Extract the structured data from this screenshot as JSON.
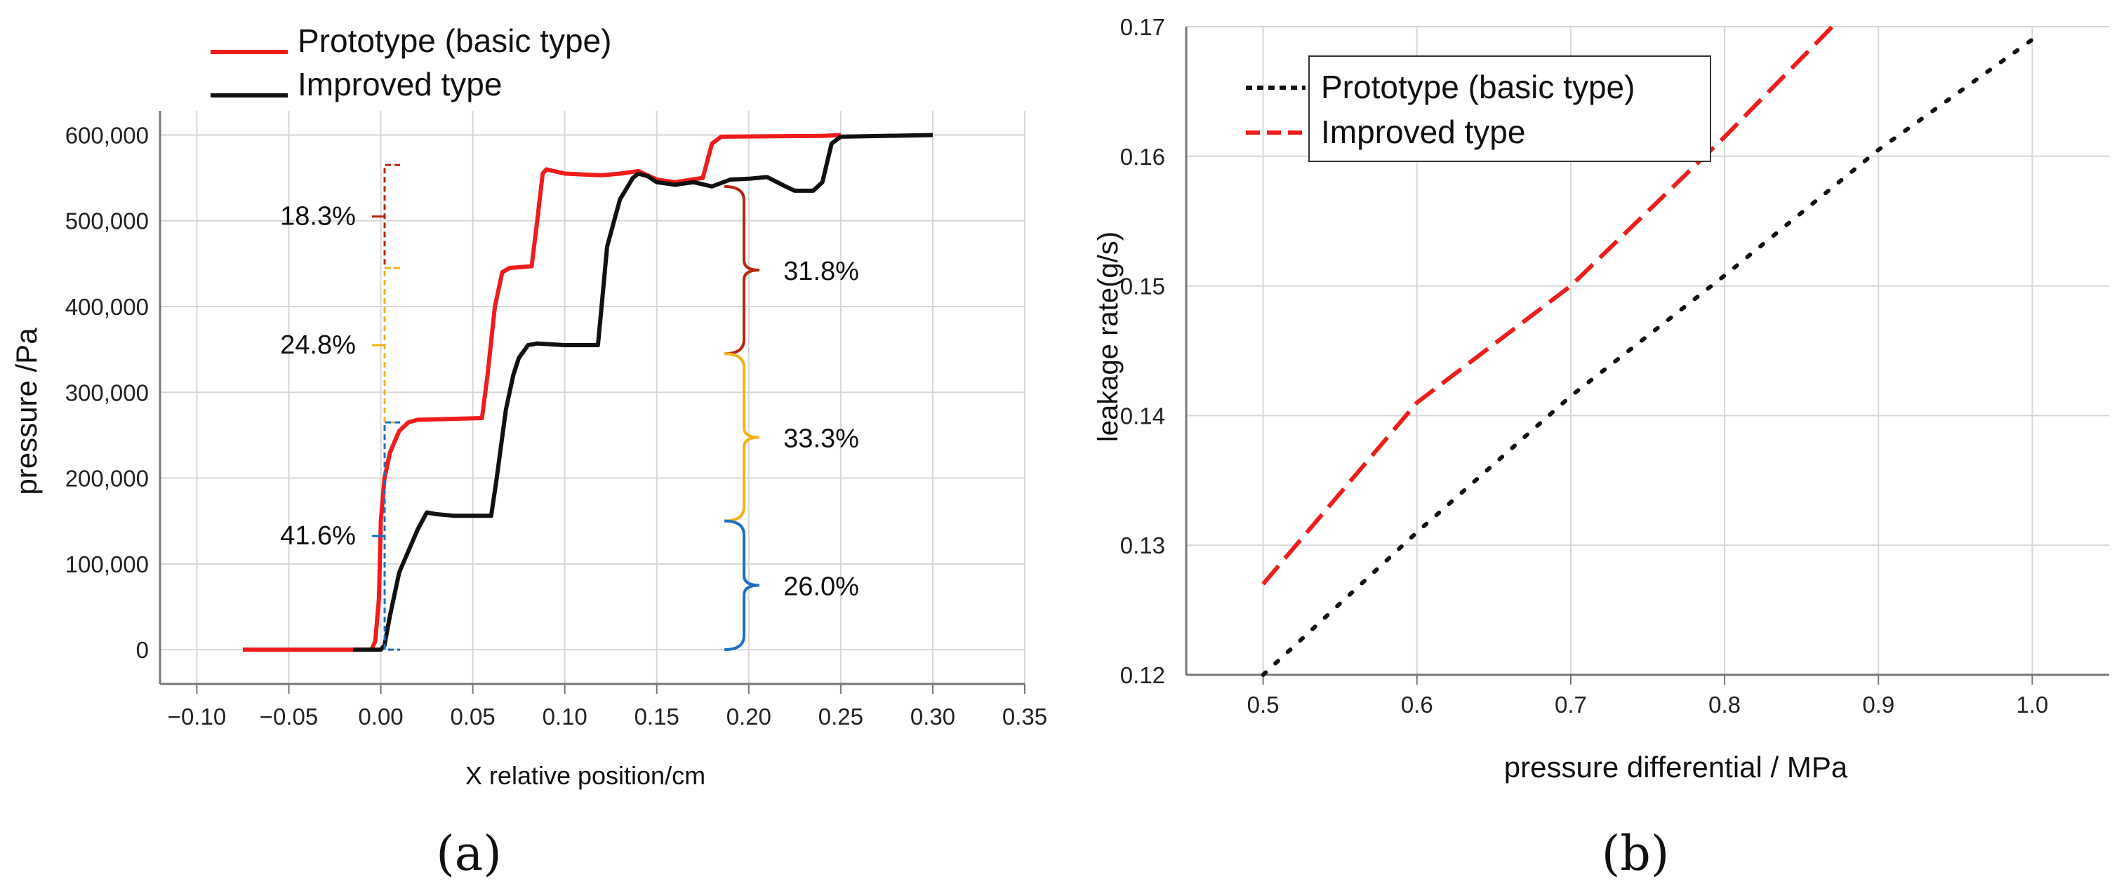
{
  "colors": {
    "red": "#ee1c1c",
    "black": "#111111",
    "grid": "#d7d7d7",
    "axis": "#777777",
    "brace_dark_red": "#b5260f",
    "brace_orange": "#f0b41a",
    "brace_blue": "#1f6fc1"
  },
  "chart_data": [
    {
      "id": "a",
      "type": "line",
      "panel_label": "(a)",
      "xlabel": "X relative position/cm",
      "ylabel": "pressure /Pa",
      "xlim": [
        -0.12,
        0.35
      ],
      "ylim": [
        -40000,
        620000
      ],
      "xticks": [
        -0.1,
        -0.05,
        0.0,
        0.05,
        0.1,
        0.15,
        0.2,
        0.25,
        0.3,
        0.35
      ],
      "xtick_labels": [
        "−0.10",
        "−0.05",
        "0.00",
        "0.05",
        "0.10",
        "0.15",
        "0.20",
        "0.25",
        "0.30",
        "0.35"
      ],
      "yticks": [
        0,
        100000,
        200000,
        300000,
        400000,
        500000,
        600000
      ],
      "ytick_labels": [
        "0",
        "100,000",
        "200,000",
        "300,000",
        "400,000",
        "500,000",
        "600,000"
      ],
      "grid": true,
      "legend_position": "top-left",
      "series": [
        {
          "name": "Prototype (basic type)",
          "color": "#ee1c1c",
          "x": [
            -0.075,
            -0.005,
            -0.003,
            -0.001,
            0.0,
            0.002,
            0.005,
            0.01,
            0.015,
            0.02,
            0.055,
            0.058,
            0.062,
            0.066,
            0.07,
            0.082,
            0.085,
            0.088,
            0.09,
            0.1,
            0.12,
            0.13,
            0.14,
            0.15,
            0.16,
            0.175,
            0.18,
            0.185,
            0.24,
            0.25
          ],
          "y": [
            0,
            0,
            10000,
            60000,
            150000,
            200000,
            230000,
            255000,
            265000,
            268000,
            270000,
            320000,
            400000,
            440000,
            445000,
            447000,
            500000,
            555000,
            560000,
            555000,
            553000,
            555000,
            558000,
            548000,
            545000,
            550000,
            590000,
            598000,
            599000,
            600000
          ]
        },
        {
          "name": "Improved type",
          "color": "#111111",
          "x": [
            -0.015,
            0.0,
            0.002,
            0.005,
            0.01,
            0.02,
            0.025,
            0.03,
            0.04,
            0.06,
            0.063,
            0.068,
            0.072,
            0.075,
            0.08,
            0.085,
            0.1,
            0.118,
            0.12,
            0.123,
            0.13,
            0.137,
            0.14,
            0.145,
            0.15,
            0.16,
            0.17,
            0.18,
            0.19,
            0.2,
            0.21,
            0.22,
            0.225,
            0.235,
            0.24,
            0.245,
            0.25,
            0.3
          ],
          "y": [
            0,
            0,
            5000,
            40000,
            90000,
            140000,
            160000,
            158000,
            156000,
            156000,
            200000,
            280000,
            320000,
            340000,
            355000,
            357000,
            355000,
            355000,
            400000,
            470000,
            525000,
            550000,
            555000,
            552000,
            545000,
            542000,
            545000,
            540000,
            548000,
            549000,
            551000,
            540000,
            535000,
            535000,
            545000,
            590000,
            598000,
            600000
          ]
        }
      ],
      "annotations": [
        {
          "text": "18.3%",
          "side": "left",
          "color": "#b5260f",
          "y_range": [
            445000,
            565000
          ]
        },
        {
          "text": "24.8%",
          "side": "left",
          "color": "#f0b41a",
          "y_range": [
            265000,
            445000
          ]
        },
        {
          "text": "41.6%",
          "side": "left",
          "color": "#1f6fc1",
          "y_range": [
            0,
            265000
          ]
        },
        {
          "text": "31.8%",
          "side": "right",
          "color": "#b5260f",
          "y_range": [
            345000,
            540000
          ]
        },
        {
          "text": "33.3%",
          "side": "right",
          "color": "#f0b41a",
          "y_range": [
            150000,
            345000
          ]
        },
        {
          "text": "26.0%",
          "side": "right",
          "color": "#1f6fc1",
          "y_range": [
            0,
            150000
          ]
        }
      ]
    },
    {
      "id": "b",
      "type": "line",
      "panel_label": "(b)",
      "xlabel": "pressure differential / MPa",
      "ylabel": "leakage rate(g/s)",
      "xlim": [
        0.45,
        1.05
      ],
      "ylim": [
        0.12,
        0.17
      ],
      "xticks": [
        0.5,
        0.6,
        0.7,
        0.8,
        0.9,
        1.0
      ],
      "xtick_labels": [
        "0.5",
        "0.6",
        "0.7",
        "0.8",
        "0.9",
        "1.0"
      ],
      "yticks": [
        0.12,
        0.13,
        0.14,
        0.15,
        0.16,
        0.17
      ],
      "ytick_labels": [
        "0.12",
        "0.13",
        "0.14",
        "0.15",
        "0.16",
        "0.17"
      ],
      "grid": true,
      "legend_position": "top-left",
      "series": [
        {
          "name": "Prototype (basic type)",
          "color": "#111111",
          "style": "dotted",
          "x": [
            0.5,
            0.6,
            0.7,
            0.8,
            0.9,
            1.0
          ],
          "y": [
            0.12,
            0.131,
            0.1415,
            0.1508,
            0.1605,
            0.169
          ]
        },
        {
          "name": "Improved type",
          "color": "#ee1c1c",
          "style": "dashed",
          "x": [
            0.5,
            0.6,
            0.7,
            0.8,
            0.87
          ],
          "y": [
            0.127,
            0.141,
            0.15,
            0.1615,
            0.17
          ]
        }
      ]
    }
  ]
}
